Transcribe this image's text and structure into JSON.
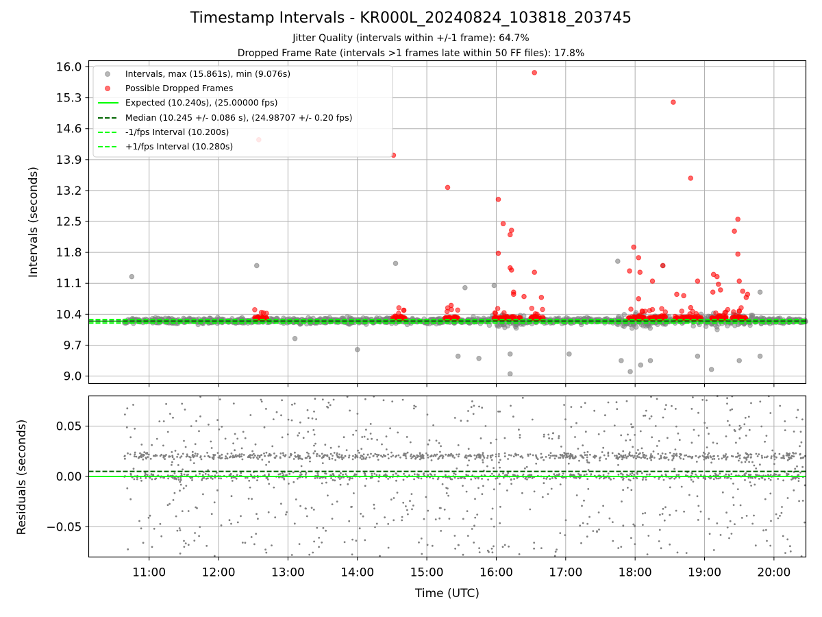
{
  "title": "Timestamp Intervals - KR000L_20240824_103818_203745",
  "subtitle_1": "Jitter Quality (intervals within +/-1 frame): 64.7%",
  "subtitle_2": "Dropped Frame Rate (intervals >1 frames late within 50 FF files): 17.8%",
  "colors": {
    "intervals": "#808080",
    "dropped": "#ff0000",
    "expected": "#00ff00",
    "median": "#006400",
    "grid": "#b0b0b0",
    "residuals": "#808080"
  },
  "chart_data": [
    {
      "type": "scatter",
      "ylabel": "Intervals (seconds)",
      "x_range_hours": [
        10.13,
        20.46
      ],
      "ylim": [
        8.83,
        16.14
      ],
      "yticks": [
        "9.0",
        "9.7",
        "10.4",
        "11.1",
        "11.8",
        "12.5",
        "13.2",
        "13.9",
        "14.6",
        "15.3",
        "16.0"
      ],
      "grid": true,
      "legend_position": "top-left",
      "legend": [
        "Intervals, max (15.861s), min (9.076s)",
        "Possible Dropped Frames",
        "Expected (10.240s), (25.00000 fps)",
        "Median (10.245 +/- 0.086 s), (24.98707 +/- 0.20 fps)",
        "-1/fps Interval (10.200s)",
        "+1/fps Interval (10.280s)"
      ],
      "lines": {
        "expected": 10.24,
        "median": 10.245,
        "minus_one_fps": 10.2,
        "plus_one_fps": 10.28
      },
      "time_span_hours": [
        10.64,
        20.46
      ],
      "interval_max": 15.861,
      "interval_min": 9.076,
      "interval_outliers": [
        [
          10.75,
          11.25
        ],
        [
          12.55,
          11.5
        ],
        [
          14.55,
          11.55
        ],
        [
          15.55,
          11.0
        ],
        [
          15.97,
          11.05
        ],
        [
          17.75,
          11.6
        ],
        [
          18.4,
          11.5
        ],
        [
          19.8,
          10.9
        ],
        [
          15.45,
          9.45
        ],
        [
          15.75,
          9.4
        ],
        [
          16.2,
          9.5
        ],
        [
          16.2,
          9.05
        ],
        [
          17.05,
          9.5
        ],
        [
          17.8,
          9.35
        ],
        [
          17.93,
          9.1
        ],
        [
          18.08,
          9.25
        ],
        [
          18.22,
          9.35
        ],
        [
          18.9,
          9.45
        ],
        [
          19.1,
          9.15
        ],
        [
          19.5,
          9.35
        ],
        [
          19.8,
          9.45
        ],
        [
          14.0,
          9.6
        ],
        [
          13.1,
          9.85
        ]
      ],
      "dropped_frames": [
        [
          12.58,
          14.35
        ],
        [
          14.52,
          14.0
        ],
        [
          15.3,
          13.27
        ],
        [
          16.03,
          13.0
        ],
        [
          16.1,
          12.45
        ],
        [
          16.22,
          12.3
        ],
        [
          16.2,
          12.2
        ],
        [
          16.2,
          11.45
        ],
        [
          16.22,
          11.4
        ],
        [
          16.03,
          11.78
        ],
        [
          16.55,
          15.87
        ],
        [
          16.55,
          11.35
        ],
        [
          18.55,
          15.2
        ],
        [
          18.8,
          13.48
        ],
        [
          19.48,
          12.55
        ],
        [
          19.43,
          12.28
        ],
        [
          19.48,
          11.76
        ],
        [
          19.5,
          11.15
        ],
        [
          17.98,
          11.92
        ],
        [
          18.05,
          11.68
        ],
        [
          17.92,
          11.38
        ],
        [
          18.07,
          11.35
        ],
        [
          18.4,
          11.5
        ],
        [
          18.25,
          11.15
        ],
        [
          18.9,
          11.15
        ],
        [
          19.13,
          11.3
        ],
        [
          19.18,
          11.25
        ],
        [
          19.2,
          11.08
        ],
        [
          19.12,
          10.9
        ],
        [
          19.23,
          10.95
        ],
        [
          19.55,
          10.92
        ],
        [
          19.62,
          10.85
        ],
        [
          16.25,
          10.85
        ],
        [
          16.25,
          10.9
        ],
        [
          16.4,
          10.8
        ],
        [
          16.65,
          10.78
        ],
        [
          15.35,
          10.6
        ],
        [
          18.05,
          10.75
        ],
        [
          18.6,
          10.85
        ],
        [
          18.7,
          10.82
        ],
        [
          18.8,
          10.55
        ],
        [
          19.6,
          10.78
        ]
      ],
      "dropped_clusters_hours": [
        [
          12.5,
          12.7
        ],
        [
          14.5,
          14.7
        ],
        [
          15.25,
          15.45
        ],
        [
          15.97,
          16.35
        ],
        [
          16.5,
          16.7
        ],
        [
          17.9,
          18.15
        ],
        [
          18.2,
          18.45
        ],
        [
          18.55,
          18.95
        ],
        [
          19.1,
          19.35
        ],
        [
          19.4,
          19.6
        ]
      ]
    },
    {
      "type": "scatter",
      "xlabel": "Time (UTC)",
      "ylabel": "Residuals (seconds)",
      "x_range_hours": [
        10.13,
        20.46
      ],
      "ylim": [
        -0.08,
        0.08
      ],
      "yticks": [
        "−0.05",
        "0.00",
        "0.05"
      ],
      "xticks": [
        "11:00",
        "12:00",
        "13:00",
        "14:00",
        "15:00",
        "16:00",
        "17:00",
        "18:00",
        "19:00",
        "20:00"
      ],
      "grid": true,
      "lines": {
        "expected": 0.0,
        "median": 0.005
      }
    }
  ]
}
